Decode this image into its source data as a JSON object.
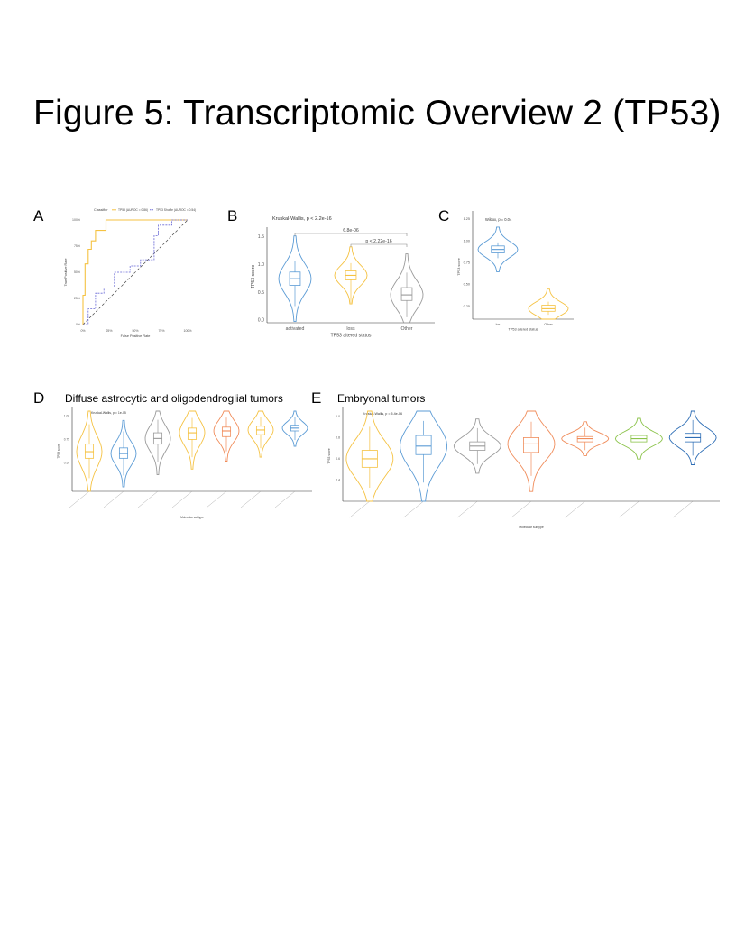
{
  "page": {
    "title": "Figure 5: Transcriptomic Overview 2 (TP53)",
    "labels": {
      "a": "A",
      "b": "B",
      "c": "C",
      "d": "D",
      "e": "E"
    },
    "panel_d_title": "Diffuse astrocytic and oligodendroglial tumors",
    "panel_e_title": "Embryonal tumors"
  },
  "colors": {
    "yellow": "#f5c242",
    "blue": "#5b9bd5",
    "grey": "#9a9a9a",
    "orange": "#f08c5a",
    "green": "#8bc34a",
    "dark_blue": "#2d6db5"
  },
  "chart_data": [
    {
      "id": "A",
      "type": "line",
      "legend": {
        "title": "Classifier",
        "entries": [
          "TP53 (AUROC = 0.86)",
          "TP53 Shuffle (AUROC = 0.54)"
        ]
      },
      "xlabel": "False Positive Rate",
      "ylabel": "True Positive Rate",
      "xticks": [
        "0%",
        "25%",
        "50%",
        "75%",
        "100%"
      ],
      "yticks": [
        "0%",
        "25%",
        "50%",
        "75%",
        "100%"
      ],
      "xlim": [
        0,
        1
      ],
      "ylim": [
        0,
        1
      ],
      "series": [
        {
          "name": "TP53 (AUROC = 0.86)",
          "color": "#f5c242",
          "x": [
            0,
            0,
            0.02,
            0.02,
            0.05,
            0.05,
            0.08,
            0.08,
            0.12,
            0.12,
            0.22,
            0.22,
            0.37,
            0.37,
            0.72,
            0.72,
            1
          ],
          "y": [
            0,
            0.28,
            0.28,
            0.58,
            0.58,
            0.72,
            0.72,
            0.8,
            0.8,
            0.9,
            0.9,
            1,
            1,
            1,
            1,
            1,
            1
          ]
        },
        {
          "name": "TP53 Shuffle (AUROC = 0.54)",
          "color": "#6a6ad6",
          "x": [
            0,
            0.05,
            0.05,
            0.12,
            0.12,
            0.2,
            0.2,
            0.3,
            0.3,
            0.45,
            0.45,
            0.55,
            0.55,
            0.68,
            0.68,
            0.72,
            0.72,
            0.85,
            0.85,
            1
          ],
          "y": [
            0,
            0,
            0.15,
            0.15,
            0.3,
            0.3,
            0.35,
            0.35,
            0.5,
            0.5,
            0.56,
            0.56,
            0.62,
            0.62,
            0.85,
            0.85,
            0.95,
            0.95,
            1,
            1
          ]
        }
      ]
    },
    {
      "id": "B",
      "type": "violin",
      "title": "Kruskal-Wallis, p < 2.2e-16",
      "xlabel": "TP53 altered status",
      "ylabel": "TP53 score",
      "ylim": [
        -0.05,
        1.6
      ],
      "yticks": [
        0.0,
        0.5,
        1.0,
        1.5
      ],
      "categories": [
        "activated",
        "loss",
        "Other"
      ],
      "colors": [
        "#5b9bd5",
        "#f5c242",
        "#9a9a9a"
      ],
      "box": [
        {
          "q1": 0.62,
          "median": 0.74,
          "q3": 0.86,
          "min": 0.25,
          "max": 1.05
        },
        {
          "q1": 0.72,
          "median": 0.8,
          "q3": 0.88,
          "min": 0.3,
          "max": 1.02
        },
        {
          "q1": 0.35,
          "median": 0.45,
          "q3": 0.58,
          "min": 0.05,
          "max": 0.85
        }
      ],
      "comparisons": [
        {
          "from": 0,
          "to": 2,
          "label": "6.8e-06"
        },
        {
          "from": 1,
          "to": 2,
          "label": "p < 2.22e-16"
        }
      ]
    },
    {
      "id": "C",
      "type": "violin",
      "title": "Wilcox, p = 0.04",
      "xlabel": "TP53 altered status",
      "ylabel": "TP53 score",
      "ylim": [
        0.1,
        1.3
      ],
      "yticks": [
        0.25,
        0.5,
        0.75,
        1.0,
        1.25
      ],
      "categories": [
        "los",
        "Other"
      ],
      "colors": [
        "#5b9bd5",
        "#f5c242"
      ],
      "box": [
        {
          "q1": 0.86,
          "median": 0.9,
          "q3": 0.94,
          "min": 0.8,
          "max": 0.98
        },
        {
          "q1": 0.19,
          "median": 0.22,
          "q3": 0.26,
          "min": 0.15,
          "max": 0.3
        }
      ]
    },
    {
      "id": "D",
      "type": "violin",
      "title": "Kruskal-Wallis, p = 1e-05",
      "xlabel": "Molecular subtype",
      "ylabel": "TP53 score",
      "ylim": [
        0.2,
        1.05
      ],
      "yticks": [
        0.5,
        0.75,
        1.0
      ],
      "categories": [
        "A",
        "B",
        "C",
        "D",
        "E",
        "F",
        "G"
      ],
      "colors": [
        "#f5c242",
        "#5b9bd5",
        "#9a9a9a",
        "#f5c242",
        "#f08c5a",
        "#f5c242",
        "#5b9bd5"
      ],
      "box": [
        {
          "q1": 0.55,
          "median": 0.62,
          "q3": 0.7
        },
        {
          "q1": 0.55,
          "median": 0.6,
          "q3": 0.66
        },
        {
          "q1": 0.7,
          "median": 0.76,
          "q3": 0.82
        },
        {
          "q1": 0.75,
          "median": 0.82,
          "q3": 0.87
        },
        {
          "q1": 0.78,
          "median": 0.84,
          "q3": 0.88
        },
        {
          "q1": 0.8,
          "median": 0.85,
          "q3": 0.89
        },
        {
          "q1": 0.84,
          "median": 0.87,
          "q3": 0.9
        }
      ]
    },
    {
      "id": "E",
      "type": "violin",
      "title": "Kruskal-Wallis, p = 5.4e-06",
      "xlabel": "Molecular subtype",
      "ylabel": "TP53 score",
      "ylim": [
        0.2,
        1.05
      ],
      "yticks": [
        0.4,
        0.6,
        0.8,
        1.0
      ],
      "categories": [
        "A",
        "B",
        "C",
        "D",
        "E",
        "F",
        "G"
      ],
      "colors": [
        "#f5c242",
        "#5b9bd5",
        "#9a9a9a",
        "#f08c5a",
        "#f08c5a",
        "#8bc34a",
        "#2d6db5"
      ],
      "box": [
        {
          "q1": 0.52,
          "median": 0.6,
          "q3": 0.68
        },
        {
          "q1": 0.64,
          "median": 0.72,
          "q3": 0.82
        },
        {
          "q1": 0.68,
          "median": 0.72,
          "q3": 0.76
        },
        {
          "q1": 0.66,
          "median": 0.74,
          "q3": 0.8
        },
        {
          "q1": 0.76,
          "median": 0.79,
          "q3": 0.81
        },
        {
          "q1": 0.76,
          "median": 0.79,
          "q3": 0.82
        },
        {
          "q1": 0.76,
          "median": 0.8,
          "q3": 0.84
        }
      ]
    }
  ]
}
